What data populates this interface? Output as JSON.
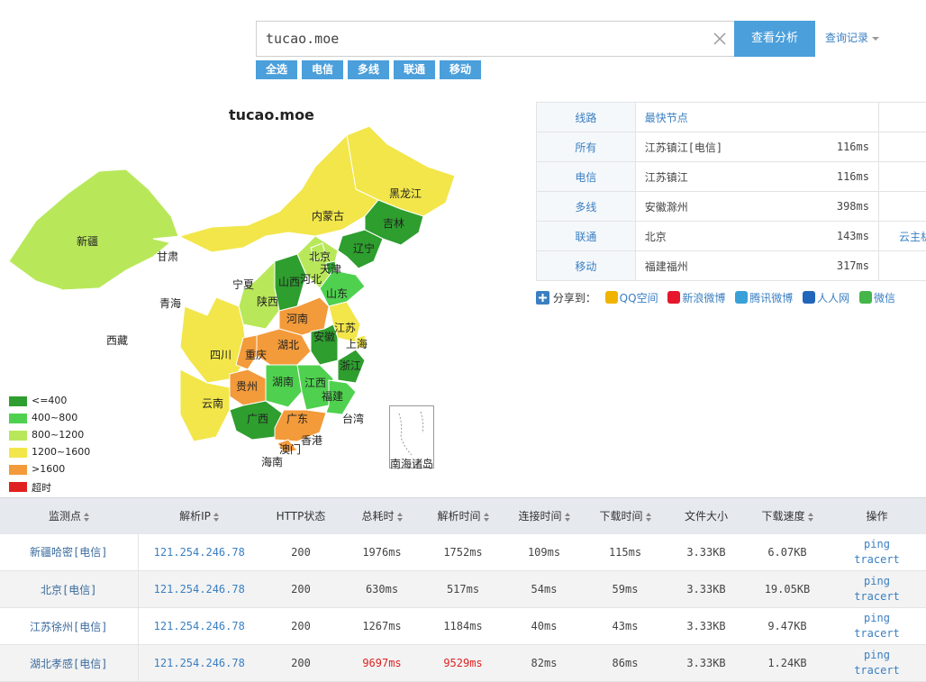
{
  "search": {
    "value": "tucao.moe",
    "button": "查看分析",
    "history": "查询记录"
  },
  "filters": [
    "全选",
    "电信",
    "多线",
    "联通",
    "移动"
  ],
  "map": {
    "title": "tucao.moe",
    "provinces": [
      "黑龙江",
      "吉林",
      "辽宁",
      "内蒙古",
      "新疆",
      "甘肃",
      "北京",
      "天津",
      "河北",
      "宁夏",
      "山西",
      "陕西",
      "山东",
      "青海",
      "西藏",
      "河南",
      "江苏",
      "上海",
      "安徽",
      "湖北",
      "四川",
      "重庆",
      "浙江",
      "贵州",
      "湖南",
      "江西",
      "福建",
      "云南",
      "广西",
      "广东",
      "台湾",
      "香港",
      "澳门",
      "海南"
    ],
    "nanhai": "南海诸岛",
    "legend": [
      {
        "label": "<=400",
        "color": "#2e9e2e"
      },
      {
        "label": "400~800",
        "color": "#4fd14f"
      },
      {
        "label": "800~1200",
        "color": "#b8e85a"
      },
      {
        "label": "1200~1600",
        "color": "#f2e64a"
      },
      {
        "label": ">1600",
        "color": "#f39a3a"
      },
      {
        "label": "超时",
        "color": "#e02020"
      }
    ]
  },
  "fastest": {
    "header": {
      "line": "线路",
      "node": "最快节点"
    },
    "rows": [
      {
        "line": "所有",
        "node": "江苏镇江[电信]",
        "time": "116ms",
        "extra": ""
      },
      {
        "line": "电信",
        "node": "江苏镇江",
        "time": "116ms",
        "extra": ""
      },
      {
        "line": "多线",
        "node": "安徽滁州",
        "time": "398ms",
        "extra": ""
      },
      {
        "line": "联通",
        "node": "北京",
        "time": "143ms",
        "extra": "云主机"
      },
      {
        "line": "移动",
        "node": "福建福州",
        "time": "317ms",
        "extra": ""
      }
    ]
  },
  "share": {
    "label": "分享到：",
    "items": [
      {
        "label": "QQ空间",
        "color": "#f0b400"
      },
      {
        "label": "新浪微博",
        "color": "#e6162d"
      },
      {
        "label": "腾讯微博",
        "color": "#3aa0d8"
      },
      {
        "label": "人人网",
        "color": "#2266bb"
      },
      {
        "label": "微信",
        "color": "#44b549"
      }
    ]
  },
  "results": {
    "headers": [
      "监测点",
      "解析IP",
      "HTTP状态",
      "总耗时",
      "解析时间",
      "连接时间",
      "下载时间",
      "文件大小",
      "下载速度",
      "操作"
    ],
    "rows": [
      {
        "node": "新疆哈密[电信]",
        "ip": "121.254.246.78",
        "status": "200",
        "total": "1976ms",
        "resolve": "1752ms",
        "connect": "109ms",
        "download": "115ms",
        "size": "3.33KB",
        "speed": "6.07KB",
        "op1": "ping",
        "op2": "tracert"
      },
      {
        "node": "北京[电信]",
        "ip": "121.254.246.78",
        "status": "200",
        "total": "630ms",
        "resolve": "517ms",
        "connect": "54ms",
        "download": "59ms",
        "size": "3.33KB",
        "speed": "19.05KB",
        "op1": "ping",
        "op2": "tracert"
      },
      {
        "node": "江苏徐州[电信]",
        "ip": "121.254.246.78",
        "status": "200",
        "total": "1267ms",
        "resolve": "1184ms",
        "connect": "40ms",
        "download": "43ms",
        "size": "3.33KB",
        "speed": "9.47KB",
        "op1": "ping",
        "op2": "tracert"
      },
      {
        "node": "湖北孝感[电信]",
        "ip": "121.254.246.78",
        "status": "200",
        "total": "9697ms",
        "resolve": "9529ms",
        "connect": "82ms",
        "download": "86ms",
        "size": "3.33KB",
        "speed": "1.24KB",
        "op1": "ping",
        "op2": "tracert"
      }
    ]
  }
}
